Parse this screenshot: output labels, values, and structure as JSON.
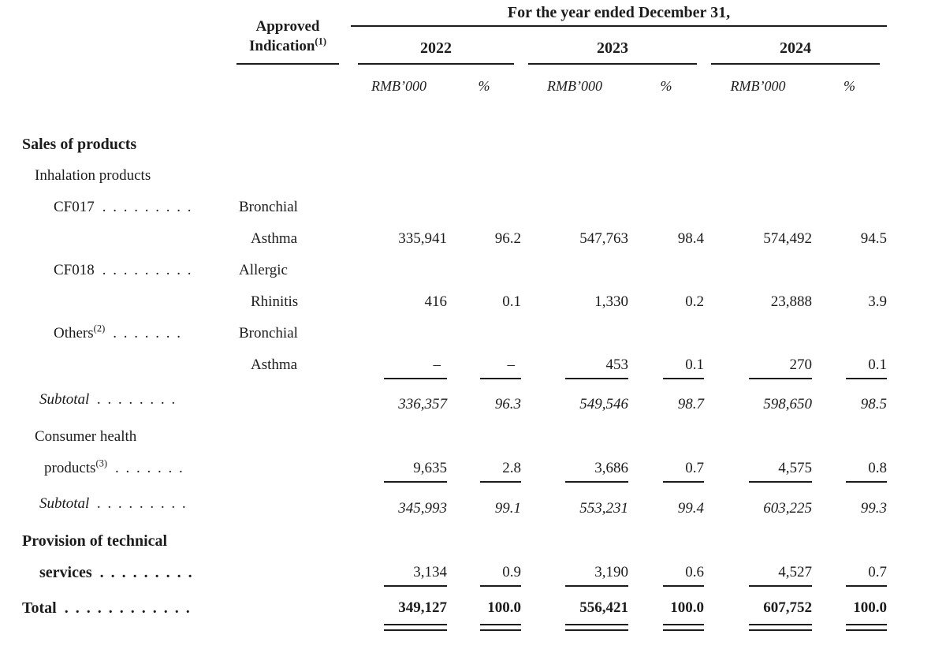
{
  "page": {
    "background": "#ffffff",
    "text_color": "#1c1c1c",
    "rule_color": "#1c1c1c"
  },
  "table": {
    "title": "For the year ended December 31,",
    "col_group_header": {
      "line1": "Approved",
      "line2": "Indication",
      "sup": "(1)"
    },
    "years": [
      "2022",
      "2023",
      "2024"
    ],
    "unit_label": "RMB’000",
    "pct_label": "%",
    "rows": [
      {
        "kind": "section-bold",
        "label": "Sales of products"
      },
      {
        "kind": "section",
        "label": "Inhalation products"
      },
      {
        "kind": "product",
        "label": "CF017",
        "dots": ". . . . . . . . .",
        "indication": "Bronchial"
      },
      {
        "kind": "cont",
        "indication": "Asthma",
        "values": [
          "335,941",
          "96.2",
          "547,763",
          "98.4",
          "574,492",
          "94.5"
        ]
      },
      {
        "kind": "product",
        "label": "CF018",
        "dots": ". . . . . . . . .",
        "indication": "Allergic"
      },
      {
        "kind": "cont",
        "indication": "Rhinitis",
        "values": [
          "416",
          "0.1",
          "1,330",
          "0.2",
          "23,888",
          "3.9"
        ]
      },
      {
        "kind": "product",
        "label": "Others",
        "sup": "(2)",
        "dots": ". . . . . . .",
        "indication": "Bronchial"
      },
      {
        "kind": "cont",
        "indication": "Asthma",
        "rule": "single",
        "values": [
          "–",
          "–",
          "453",
          "0.1",
          "270",
          "0.1"
        ]
      },
      {
        "kind": "subtotal",
        "label": "Subtotal",
        "dots": ". . . . . . . .",
        "values": [
          "336,357",
          "96.3",
          "549,546",
          "98.7",
          "598,650",
          "98.5"
        ]
      },
      {
        "kind": "section",
        "label": "Consumer health"
      },
      {
        "kind": "product2",
        "label": "products",
        "sup": "(3)",
        "dots": ". . . . . . .",
        "rule": "single",
        "values": [
          "9,635",
          "2.8",
          "3,686",
          "0.7",
          "4,575",
          "0.8"
        ]
      },
      {
        "kind": "subtotal",
        "label": "Subtotal",
        "dots": ". . . . . . . . .",
        "values": [
          "345,993",
          "99.1",
          "553,231",
          "99.4",
          "603,225",
          "99.3"
        ]
      },
      {
        "kind": "section-bold",
        "label": "Provision of technical"
      },
      {
        "kind": "boldcont",
        "label": "services",
        "dots": ". . . . . . . . .",
        "rule": "single",
        "values": [
          "3,134",
          "0.9",
          "3,190",
          "0.6",
          "4,527",
          "0.7"
        ]
      },
      {
        "kind": "total",
        "label": "Total",
        "dots": ". . . . . . . . . . . .",
        "rule": "double",
        "values": [
          "349,127",
          "100.0",
          "556,421",
          "100.0",
          "607,752",
          "100.0"
        ]
      }
    ]
  }
}
